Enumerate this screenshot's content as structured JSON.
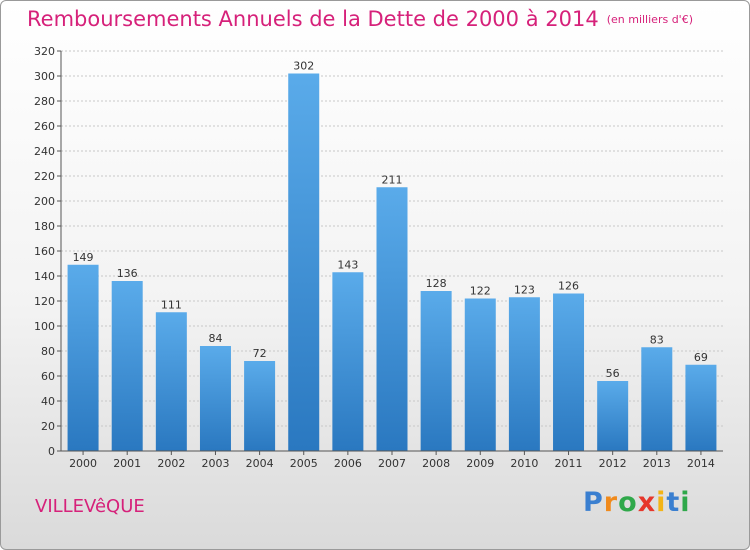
{
  "chart_data": {
    "type": "bar",
    "title": "Remboursements Annuels de la Dette de 2000 à 2014",
    "subtitle": "(en milliers d'€)",
    "categories": [
      "2000",
      "2001",
      "2002",
      "2003",
      "2004",
      "2005",
      "2006",
      "2007",
      "2008",
      "2009",
      "2010",
      "2011",
      "2012",
      "2013",
      "2014"
    ],
    "values": [
      149,
      136,
      111,
      84,
      72,
      302,
      143,
      211,
      128,
      122,
      123,
      126,
      56,
      83,
      69
    ],
    "ylim": [
      0,
      320
    ],
    "yticks": [
      0,
      20,
      40,
      60,
      80,
      100,
      120,
      140,
      160,
      180,
      200,
      220,
      240,
      260,
      280,
      300,
      320
    ],
    "grid": true,
    "colors": {
      "bar_top": "#5aabea",
      "bar_bottom": "#2a78c0",
      "title": "#d6217a"
    }
  },
  "footer": {
    "commune": "VILLEVêQUE"
  },
  "logo": {
    "letters": [
      "P",
      "r",
      "o",
      "x",
      "i",
      "t",
      "i"
    ],
    "colors": [
      "#3a7fd0",
      "#f08a1c",
      "#2fa84a",
      "#e6372b",
      "#f3b416",
      "#3a7fd0",
      "#2fa84a"
    ]
  }
}
